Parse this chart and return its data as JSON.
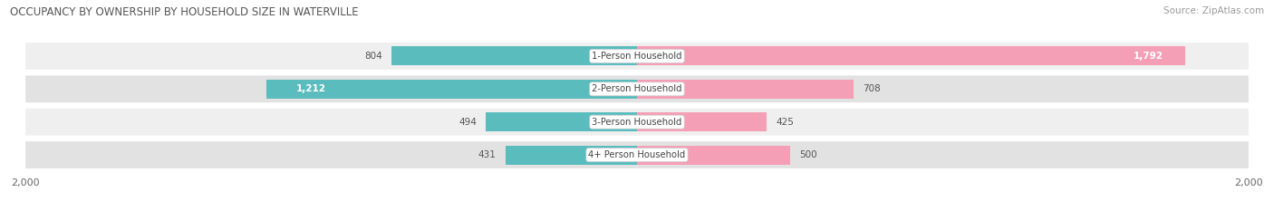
{
  "title": "OCCUPANCY BY OWNERSHIP BY HOUSEHOLD SIZE IN WATERVILLE",
  "source": "Source: ZipAtlas.com",
  "categories": [
    "1-Person Household",
    "2-Person Household",
    "3-Person Household",
    "4+ Person Household"
  ],
  "owner_values": [
    804,
    1212,
    494,
    431
  ],
  "renter_values": [
    1792,
    708,
    425,
    500
  ],
  "owner_color": "#5bbcbe",
  "renter_color": "#f49fb5",
  "axis_max": 2000,
  "row_bg_light": "#efefef",
  "row_bg_dark": "#e2e2e2",
  "label_color": "#666666",
  "title_color": "#555555",
  "source_color": "#999999",
  "figsize": [
    14.06,
    2.33
  ],
  "dpi": 100
}
